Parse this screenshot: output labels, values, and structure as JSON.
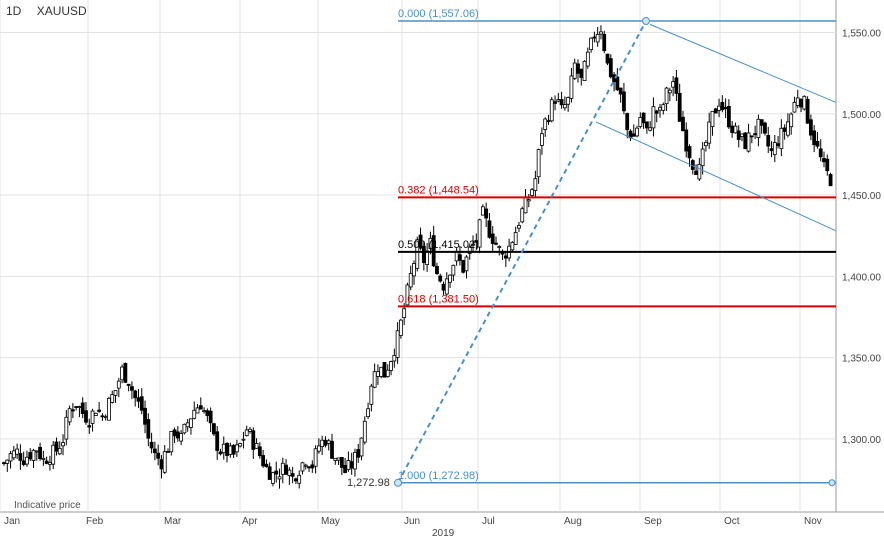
{
  "header": {
    "timeframe": "1D",
    "symbol": "XAUUSD"
  },
  "footer_note": "Indicative price",
  "colors": {
    "candle": "#000000",
    "grid": "#e3e3e3",
    "fib_zero": "#4a90c8",
    "fib_382": "#d60000",
    "fib_500": "#000000",
    "fib_618": "#d60000",
    "channel": "#4a90c8"
  },
  "chart_data": {
    "type": "candlestick",
    "ylim": [
      1255,
      1570
    ],
    "y_ticks": [
      "1,300.00",
      "1,350.00",
      "1,400.00",
      "1,450.00",
      "1,500.00",
      "1,550.00"
    ],
    "y_tick_values": [
      1300,
      1350,
      1400,
      1450,
      1500,
      1550
    ],
    "x_ticks": [
      "Jan",
      "Feb",
      "Mar",
      "Apr",
      "May",
      "Jun",
      "Jul",
      "Aug",
      "Sep",
      "Oct",
      "Nov"
    ],
    "year_label": "2019",
    "low_label": "1,272.98",
    "fib_levels": [
      {
        "label": "0.000 (1,557.06)",
        "value": 1557.06,
        "color": "#4a90c8"
      },
      {
        "label": "0.382 (1,448.54)",
        "value": 1448.54,
        "color": "#d60000"
      },
      {
        "label": "0.500 (1,415.02)",
        "value": 1415.02,
        "color": "#000000"
      },
      {
        "label": "0.618 (1,381.50)",
        "value": 1381.5,
        "color": "#d60000"
      },
      {
        "label": "1.000 (1,272.98)",
        "value": 1272.98,
        "color": "#4a90c8"
      }
    ],
    "close_path": [
      [
        0,
        1285
      ],
      [
        4,
        1290
      ],
      [
        8,
        1292
      ],
      [
        12,
        1288
      ],
      [
        16,
        1291
      ],
      [
        20,
        1294
      ],
      [
        24,
        1287
      ],
      [
        28,
        1290
      ],
      [
        32,
        1293
      ],
      [
        36,
        1300
      ],
      [
        40,
        1318
      ],
      [
        44,
        1322
      ],
      [
        48,
        1316
      ],
      [
        52,
        1312
      ],
      [
        56,
        1319
      ],
      [
        60,
        1314
      ],
      [
        64,
        1322
      ],
      [
        68,
        1330
      ],
      [
        72,
        1342
      ],
      [
        76,
        1336
      ],
      [
        80,
        1325
      ],
      [
        84,
        1318
      ],
      [
        88,
        1300
      ],
      [
        92,
        1290
      ],
      [
        96,
        1286
      ],
      [
        100,
        1295
      ],
      [
        104,
        1305
      ],
      [
        108,
        1300
      ],
      [
        112,
        1310
      ],
      [
        116,
        1318
      ],
      [
        120,
        1322
      ],
      [
        124,
        1312
      ],
      [
        128,
        1300
      ],
      [
        132,
        1293
      ],
      [
        136,
        1292
      ],
      [
        140,
        1290
      ],
      [
        144,
        1296
      ],
      [
        148,
        1306
      ],
      [
        152,
        1298
      ],
      [
        156,
        1290
      ],
      [
        160,
        1282
      ],
      [
        164,
        1278
      ],
      [
        168,
        1280
      ],
      [
        172,
        1283
      ],
      [
        176,
        1276
      ],
      [
        180,
        1282
      ],
      [
        184,
        1288
      ],
      [
        188,
        1284
      ],
      [
        192,
        1296
      ],
      [
        196,
        1300
      ],
      [
        200,
        1292
      ],
      [
        204,
        1286
      ],
      [
        208,
        1280
      ],
      [
        212,
        1284
      ],
      [
        216,
        1292
      ],
      [
        220,
        1312
      ],
      [
        224,
        1335
      ],
      [
        228,
        1345
      ],
      [
        232,
        1340
      ],
      [
        236,
        1350
      ],
      [
        240,
        1362
      ],
      [
        244,
        1380
      ],
      [
        248,
        1400
      ],
      [
        252,
        1418
      ],
      [
        256,
        1410
      ],
      [
        260,
        1420
      ],
      [
        264,
        1402
      ],
      [
        268,
        1395
      ],
      [
        272,
        1405
      ],
      [
        276,
        1412
      ],
      [
        280,
        1405
      ],
      [
        284,
        1416
      ],
      [
        288,
        1422
      ],
      [
        292,
        1438
      ],
      [
        296,
        1428
      ],
      [
        300,
        1420
      ],
      [
        304,
        1412
      ],
      [
        308,
        1418
      ],
      [
        312,
        1428
      ],
      [
        316,
        1440
      ],
      [
        320,
        1448
      ],
      [
        324,
        1460
      ],
      [
        328,
        1490
      ],
      [
        332,
        1500
      ],
      [
        336,
        1510
      ],
      [
        340,
        1502
      ],
      [
        344,
        1508
      ],
      [
        348,
        1530
      ],
      [
        352,
        1520
      ],
      [
        356,
        1535
      ],
      [
        360,
        1549
      ],
      [
        364,
        1553
      ],
      [
        368,
        1530
      ],
      [
        372,
        1520
      ],
      [
        376,
        1510
      ],
      [
        380,
        1490
      ],
      [
        384,
        1486
      ],
      [
        388,
        1498
      ],
      [
        392,
        1488
      ],
      [
        396,
        1502
      ],
      [
        400,
        1500
      ],
      [
        404,
        1512
      ],
      [
        408,
        1520
      ],
      [
        412,
        1498
      ],
      [
        416,
        1482
      ],
      [
        420,
        1470
      ],
      [
        424,
        1465
      ],
      [
        428,
        1482
      ],
      [
        432,
        1498
      ],
      [
        436,
        1508
      ],
      [
        440,
        1500
      ],
      [
        444,
        1492
      ],
      [
        448,
        1485
      ],
      [
        452,
        1482
      ],
      [
        456,
        1488
      ],
      [
        460,
        1492
      ],
      [
        464,
        1484
      ],
      [
        468,
        1476
      ],
      [
        472,
        1484
      ],
      [
        476,
        1490
      ],
      [
        480,
        1500
      ],
      [
        484,
        1512
      ],
      [
        488,
        1506
      ],
      [
        492,
        1490
      ],
      [
        496,
        1478
      ],
      [
        500,
        1466
      ],
      [
        504,
        1460
      ],
      [
        508,
        1456
      ]
    ]
  }
}
